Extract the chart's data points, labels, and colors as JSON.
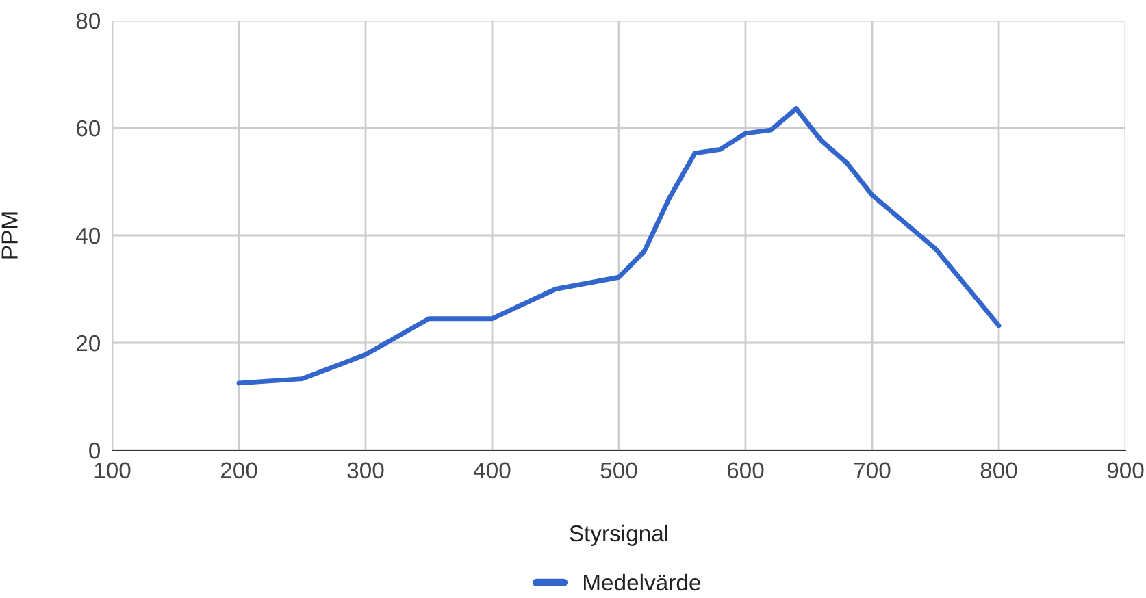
{
  "chart_data": {
    "type": "line",
    "xlabel": "Styrsignal",
    "ylabel": "PPM",
    "x": [
      200,
      250,
      300,
      350,
      400,
      450,
      500,
      520,
      540,
      560,
      580,
      600,
      620,
      640,
      660,
      680,
      700,
      750,
      800
    ],
    "series": [
      {
        "name": "Medelvärde",
        "color": "#3366cc",
        "values": [
          12.5,
          13.3,
          17.8,
          24.5,
          24.5,
          30,
          32.2,
          37,
          47,
          55.3,
          56,
          59,
          59.6,
          63.6,
          57.6,
          53.5,
          47.5,
          37.5,
          23.2
        ]
      }
    ],
    "xlim": [
      100,
      900
    ],
    "xticks": [
      100,
      200,
      300,
      400,
      500,
      600,
      700,
      800,
      900
    ],
    "ylim": [
      0,
      80
    ],
    "yticks": [
      0,
      20,
      40,
      60,
      80
    ],
    "grid": true,
    "legend": "bottom",
    "marker": "none",
    "line_style": "solid"
  }
}
